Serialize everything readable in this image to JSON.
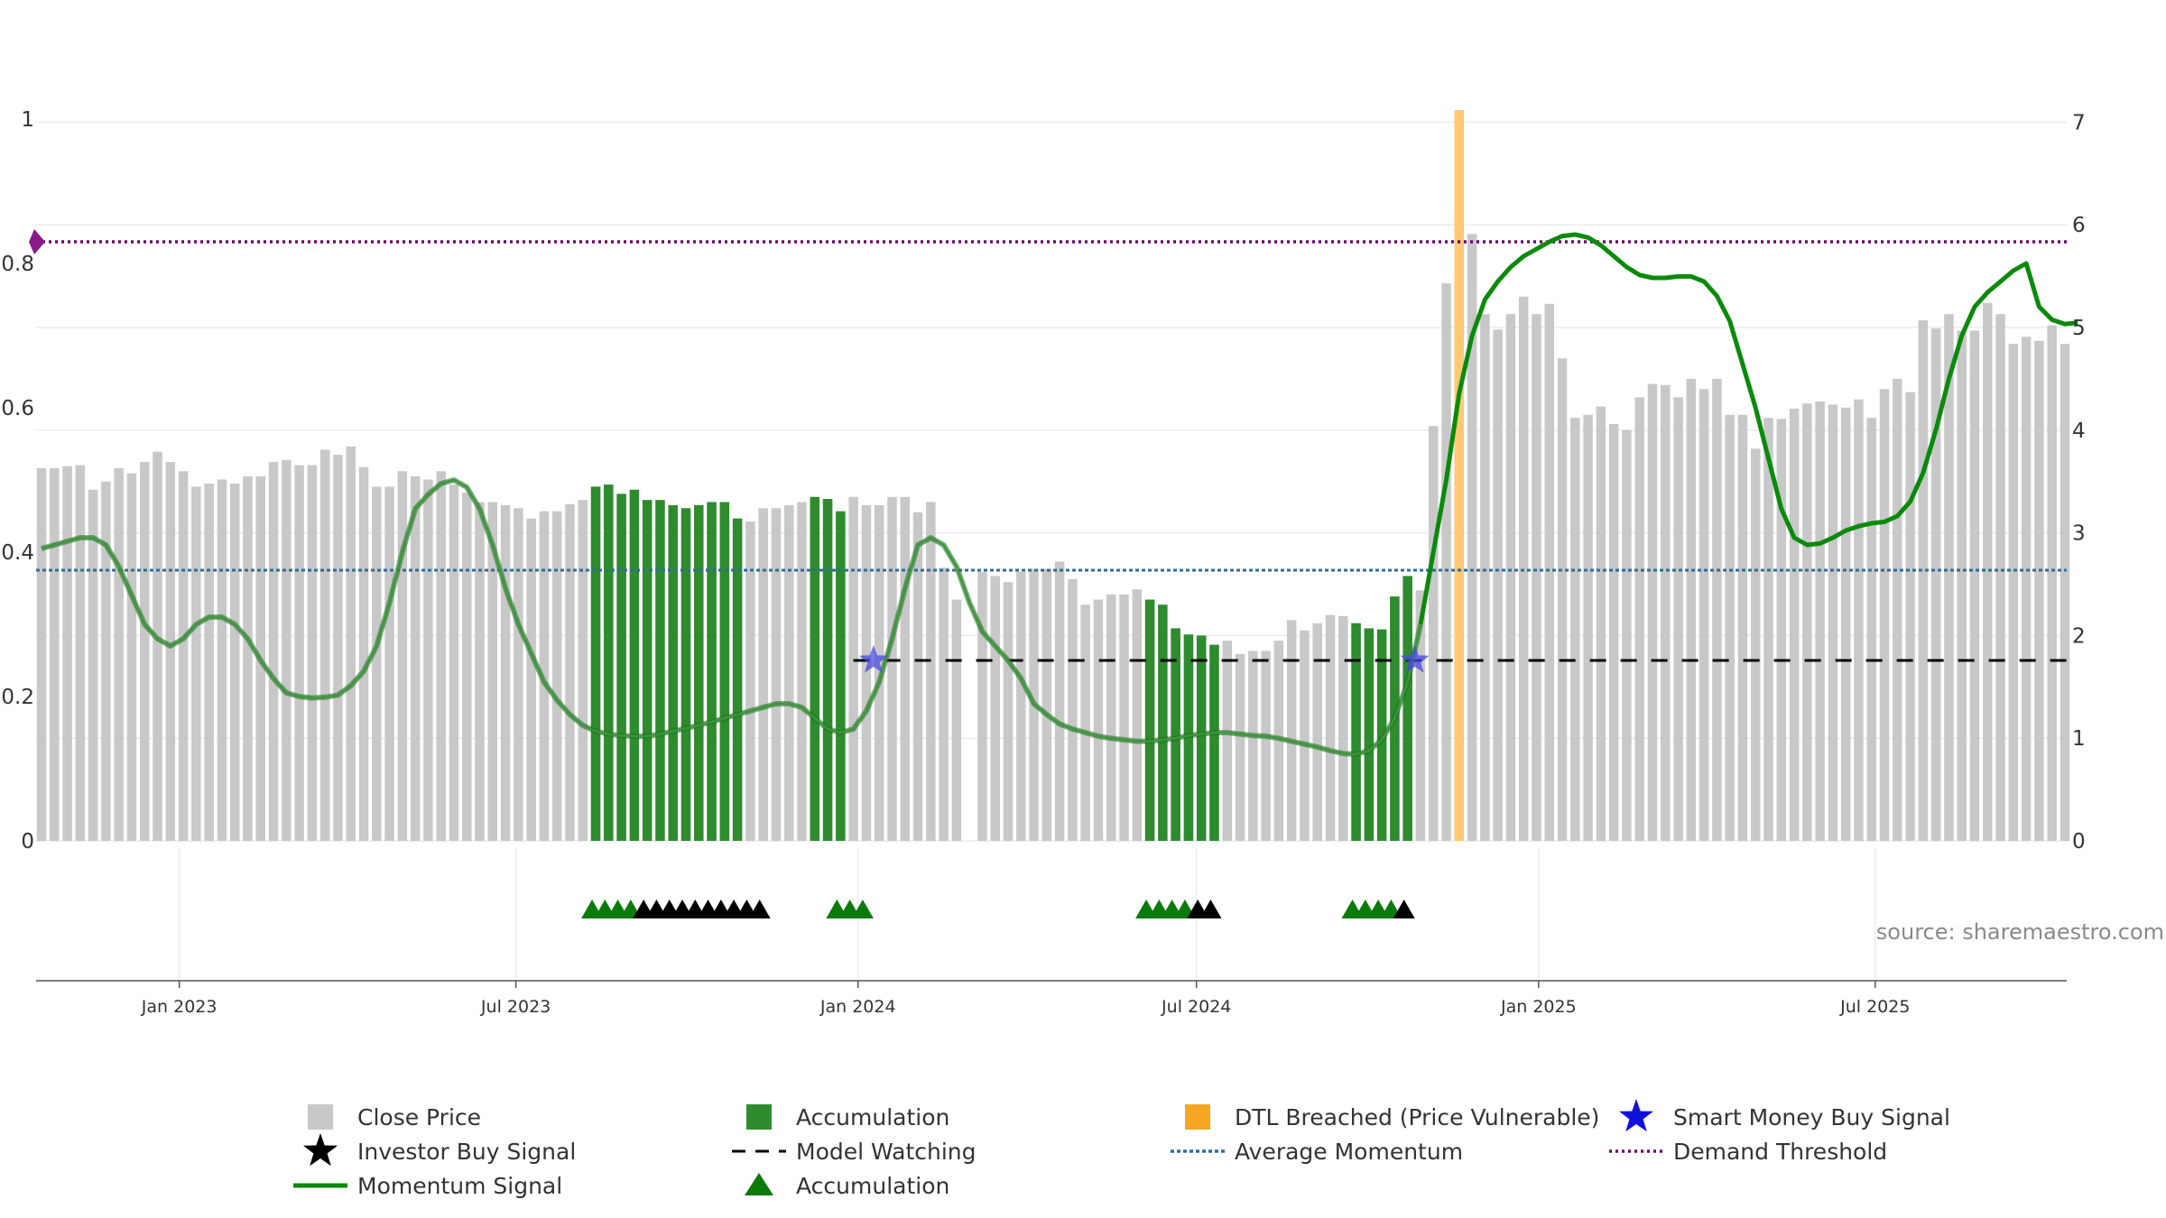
{
  "chart_data": {
    "type": "bar",
    "x_range": [
      "2022-10-16",
      "2025-10-12"
    ],
    "x_ticks": [
      "Jan 2023",
      "Jul 2023",
      "Jan 2024",
      "Jul 2024",
      "Jan 2025",
      "Jul 2025"
    ],
    "left_axis": {
      "ticks": [
        "0",
        "0.2",
        "0.4",
        "0.6",
        "0.8",
        "1"
      ],
      "ylim": [
        0,
        1
      ]
    },
    "right_axis": {
      "ticks": [
        "0",
        "1",
        "2",
        "3",
        "4",
        "5",
        "6",
        "7"
      ],
      "ylim": [
        0,
        7.03
      ]
    },
    "close_price": [
      3.63,
      3.63,
      3.65,
      3.66,
      3.42,
      3.5,
      3.63,
      3.58,
      3.69,
      3.79,
      3.69,
      3.6,
      3.45,
      3.48,
      3.52,
      3.48,
      3.55,
      3.55,
      3.69,
      3.71,
      3.66,
      3.66,
      3.81,
      3.76,
      3.84,
      3.64,
      3.45,
      3.45,
      3.6,
      3.55,
      3.52,
      3.6,
      3.47,
      3.39,
      3.3,
      3.3,
      3.27,
      3.24,
      3.14,
      3.21,
      3.21,
      3.28,
      3.32,
      3.45,
      3.47,
      3.38,
      3.42,
      3.32,
      3.32,
      3.27,
      3.24,
      3.27,
      3.3,
      3.3,
      3.14,
      3.11,
      3.24,
      3.24,
      3.27,
      3.3,
      3.35,
      3.33,
      3.21,
      3.35,
      3.27,
      3.27,
      3.35,
      3.35,
      3.2,
      3.3,
      2.66,
      2.35,
      0,
      2.62,
      2.58,
      2.52,
      2.62,
      2.65,
      2.65,
      2.72,
      2.55,
      2.3,
      2.35,
      2.4,
      2.4,
      2.45,
      2.35,
      2.3,
      2.07,
      2.01,
      2.0,
      1.91,
      1.95,
      1.82,
      1.85,
      1.85,
      1.95,
      2.15,
      2.05,
      2.12,
      2.2,
      2.19,
      2.12,
      2.07,
      2.06,
      2.38,
      2.58,
      2.44,
      4.04,
      5.43,
      5.49,
      5.91,
      5.13,
      4.98,
      5.13,
      5.3,
      5.13,
      5.23,
      4.7,
      4.12,
      4.15,
      4.23,
      4.06,
      4.0,
      4.32,
      4.45,
      4.44,
      4.32,
      4.5,
      4.4,
      4.5,
      4.15,
      4.15,
      3.82,
      4.12,
      4.11,
      4.21,
      4.26,
      4.28,
      4.25,
      4.22,
      4.3,
      4.12,
      4.4,
      4.5,
      4.37,
      5.07,
      4.99,
      5.13,
      4.97,
      4.97,
      5.24,
      5.13,
      4.84,
      4.91,
      4.87,
      5.02,
      4.84
    ],
    "accumulation_bars": [
      [
        43,
        54
      ],
      [
        60,
        62
      ],
      [
        86,
        91
      ],
      [
        102,
        106
      ]
    ],
    "dtl_breached_bar": 110,
    "momentum_signal": [
      [
        0,
        0.405
      ],
      [
        1,
        0.41
      ],
      [
        2,
        0.415
      ],
      [
        3,
        0.42
      ],
      [
        4,
        0.42
      ],
      [
        5,
        0.41
      ],
      [
        6,
        0.38
      ],
      [
        7,
        0.34
      ],
      [
        8,
        0.3
      ],
      [
        9,
        0.28
      ],
      [
        10,
        0.27
      ],
      [
        11,
        0.28
      ],
      [
        12,
        0.3
      ],
      [
        13,
        0.31
      ],
      [
        14,
        0.31
      ],
      [
        15,
        0.3
      ],
      [
        16,
        0.28
      ],
      [
        17,
        0.25
      ],
      [
        18,
        0.225
      ],
      [
        19,
        0.205
      ],
      [
        20,
        0.2
      ],
      [
        21,
        0.198
      ],
      [
        22,
        0.199
      ],
      [
        23,
        0.202
      ],
      [
        24,
        0.215
      ],
      [
        25,
        0.235
      ],
      [
        26,
        0.27
      ],
      [
        27,
        0.33
      ],
      [
        28,
        0.4
      ],
      [
        29,
        0.46
      ],
      [
        30,
        0.48
      ],
      [
        31,
        0.495
      ],
      [
        32,
        0.5
      ],
      [
        33,
        0.49
      ],
      [
        34,
        0.46
      ],
      [
        35,
        0.41
      ],
      [
        36,
        0.35
      ],
      [
        37,
        0.3
      ],
      [
        38,
        0.26
      ],
      [
        39,
        0.22
      ],
      [
        40,
        0.195
      ],
      [
        41,
        0.175
      ],
      [
        42,
        0.16
      ],
      [
        43,
        0.152
      ],
      [
        44,
        0.148
      ],
      [
        45,
        0.146
      ],
      [
        46,
        0.145
      ],
      [
        47,
        0.145
      ],
      [
        48,
        0.148
      ],
      [
        49,
        0.152
      ],
      [
        50,
        0.156
      ],
      [
        51,
        0.16
      ],
      [
        52,
        0.165
      ],
      [
        53,
        0.17
      ],
      [
        54,
        0.175
      ],
      [
        55,
        0.18
      ],
      [
        56,
        0.185
      ],
      [
        57,
        0.19
      ],
      [
        58,
        0.19
      ],
      [
        59,
        0.185
      ],
      [
        60,
        0.17
      ],
      [
        61,
        0.155
      ],
      [
        62,
        0.15
      ],
      [
        63,
        0.155
      ],
      [
        64,
        0.18
      ],
      [
        65,
        0.22
      ],
      [
        66,
        0.28
      ],
      [
        67,
        0.35
      ],
      [
        68,
        0.41
      ],
      [
        69,
        0.42
      ],
      [
        70,
        0.41
      ],
      [
        71,
        0.38
      ],
      [
        72,
        0.33
      ],
      [
        73,
        0.29
      ],
      [
        74,
        0.27
      ],
      [
        75,
        0.25
      ],
      [
        76,
        0.225
      ],
      [
        77,
        0.19
      ],
      [
        78,
        0.175
      ],
      [
        79,
        0.162
      ],
      [
        80,
        0.155
      ],
      [
        81,
        0.15
      ],
      [
        82,
        0.145
      ],
      [
        83,
        0.142
      ],
      [
        84,
        0.14
      ],
      [
        85,
        0.138
      ],
      [
        86,
        0.138
      ],
      [
        87,
        0.14
      ],
      [
        88,
        0.142
      ],
      [
        89,
        0.146
      ],
      [
        90,
        0.148
      ],
      [
        91,
        0.15
      ],
      [
        92,
        0.15
      ],
      [
        93,
        0.148
      ],
      [
        94,
        0.146
      ],
      [
        95,
        0.145
      ],
      [
        96,
        0.142
      ],
      [
        97,
        0.138
      ],
      [
        98,
        0.134
      ],
      [
        99,
        0.13
      ],
      [
        100,
        0.125
      ],
      [
        101,
        0.121
      ],
      [
        102,
        0.12
      ],
      [
        103,
        0.125
      ],
      [
        104,
        0.14
      ],
      [
        105,
        0.17
      ],
      [
        106,
        0.22
      ],
      [
        107,
        0.3
      ],
      [
        108,
        0.4
      ],
      [
        109,
        0.5
      ],
      [
        110,
        0.62
      ],
      [
        111,
        0.7
      ],
      [
        112,
        0.75
      ],
      [
        113,
        0.775
      ],
      [
        114,
        0.795
      ],
      [
        115,
        0.81
      ],
      [
        116,
        0.82
      ],
      [
        117,
        0.83
      ],
      [
        118,
        0.838
      ],
      [
        119,
        0.84
      ],
      [
        120,
        0.836
      ],
      [
        121,
        0.825
      ],
      [
        122,
        0.81
      ],
      [
        123,
        0.795
      ],
      [
        124,
        0.784
      ],
      [
        125,
        0.78
      ],
      [
        126,
        0.78
      ],
      [
        127,
        0.782
      ],
      [
        128,
        0.782
      ],
      [
        129,
        0.775
      ],
      [
        130,
        0.755
      ],
      [
        131,
        0.72
      ],
      [
        132,
        0.66
      ],
      [
        133,
        0.6
      ],
      [
        134,
        0.53
      ],
      [
        135,
        0.46
      ],
      [
        136,
        0.42
      ],
      [
        137,
        0.41
      ],
      [
        138,
        0.412
      ],
      [
        139,
        0.42
      ],
      [
        140,
        0.43
      ],
      [
        141,
        0.436
      ],
      [
        142,
        0.44
      ],
      [
        143,
        0.442
      ],
      [
        144,
        0.45
      ],
      [
        145,
        0.47
      ],
      [
        146,
        0.51
      ],
      [
        147,
        0.57
      ],
      [
        148,
        0.64
      ],
      [
        149,
        0.7
      ],
      [
        150,
        0.74
      ],
      [
        151,
        0.76
      ],
      [
        152,
        0.775
      ],
      [
        153,
        0.79
      ],
      [
        154,
        0.8
      ],
      [
        155,
        0.74
      ],
      [
        156,
        0.722
      ],
      [
        157,
        0.716
      ],
      [
        158,
        0.718
      ]
    ],
    "momentum_bold_from": 107,
    "demand_threshold": 0.83,
    "average_momentum": 0.375,
    "model_watching_level": 0.25,
    "model_watching_from": 63,
    "smart_money_buy_signals": [
      64,
      106
    ],
    "accumulation_markers": [
      43,
      44,
      45,
      46,
      62,
      63,
      64,
      86,
      87,
      88,
      89,
      102,
      103,
      104,
      105
    ],
    "investor_buy_markers": [
      47,
      48,
      49,
      50,
      51,
      52,
      53,
      54,
      55,
      56,
      90,
      91,
      106
    ],
    "legend": [
      "Close Price",
      "Accumulation",
      "DTL Breached (Price Vulnerable)",
      "Smart Money Buy Signal",
      "Investor Buy Signal",
      "Model Watching",
      "Average Momentum",
      "Demand Threshold",
      "Momentum Signal",
      "Accumulation"
    ],
    "legend_placement": "bottom",
    "annotation": "source: sharemaestro.com",
    "colors": {
      "close_price": "#c8c8c8",
      "accumulation": "#2e8b2e",
      "dtl_breached": "#ffc872",
      "momentum": "#0a8a0a",
      "momentum_faded": "#3c963c",
      "demand_threshold": "#6a0a6a",
      "average_momentum": "#2e6d9a",
      "model_watching": "#000000",
      "smart_money": "#1010dd",
      "accumulation_marker": "#0a7a0a",
      "investor_marker": "#000000"
    }
  }
}
